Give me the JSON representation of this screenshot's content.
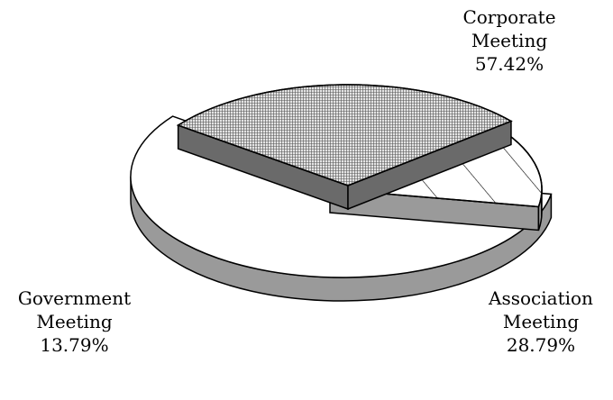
{
  "chart_data": {
    "type": "pie",
    "categories": [
      "Corporate Meeting",
      "Association Meeting",
      "Government Meeting"
    ],
    "values": [
      57.42,
      28.79,
      13.79
    ],
    "value_labels": [
      "57.42%",
      "28.79%",
      "13.79%"
    ],
    "colors": [
      "#ffffff",
      "#e4e4e4",
      "#ffffff"
    ]
  }
}
